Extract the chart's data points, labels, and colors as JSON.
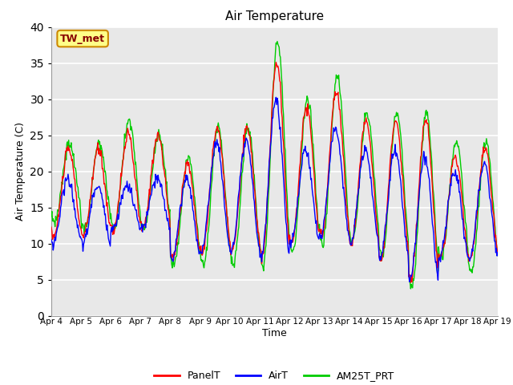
{
  "title": "Air Temperature",
  "xlabel": "Time",
  "ylabel": "Air Temperature (C)",
  "ylim": [
    0,
    40
  ],
  "xlim_labels": [
    "Apr 4",
    "Apr 5",
    "Apr 6",
    "Apr 7",
    "Apr 8",
    "Apr 9",
    "Apr 10",
    "Apr 11",
    "Apr 12",
    "Apr 13",
    "Apr 14",
    "Apr 15",
    "Apr 16",
    "Apr 17",
    "Apr 18",
    "Apr 19"
  ],
  "annotation": "TW_met",
  "annotation_box_facecolor": "#FFFF88",
  "annotation_box_edgecolor": "#CC8800",
  "annotation_text_color": "#880000",
  "series_colors": [
    "red",
    "blue",
    "#00CC00"
  ],
  "series_labels": [
    "PanelT",
    "AirT",
    "AM25T_PRT"
  ],
  "series_linewidth": 1.0,
  "background_color": "#e8e8e8",
  "grid_color": "white",
  "yticks": [
    0,
    5,
    10,
    15,
    20,
    25,
    30,
    35,
    40
  ],
  "day_peaks_panel": [
    23,
    23,
    25,
    25,
    21,
    26,
    26,
    35,
    29,
    31,
    27,
    27,
    27,
    22,
    23,
    23
  ],
  "day_troughs_panel": [
    11,
    11,
    12,
    12,
    8,
    9,
    9,
    8,
    10,
    11,
    10,
    8,
    5,
    8,
    8,
    8
  ],
  "day_peaks_air": [
    19,
    18,
    18,
    19,
    19,
    24,
    24,
    30,
    23,
    26,
    23,
    23,
    22,
    20,
    21,
    21
  ],
  "day_troughs_air": [
    10,
    10,
    12,
    12,
    8,
    9,
    9,
    8,
    10,
    11,
    10,
    8,
    5,
    8,
    8,
    8
  ],
  "day_peaks_am25": [
    24,
    24,
    27,
    25,
    22,
    26,
    26,
    38,
    30,
    33,
    28,
    28,
    28,
    24,
    24,
    24
  ],
  "day_troughs_am25": [
    13,
    12,
    12,
    12,
    7,
    7,
    7,
    7,
    9,
    10,
    10,
    8,
    4,
    8,
    6,
    6
  ]
}
